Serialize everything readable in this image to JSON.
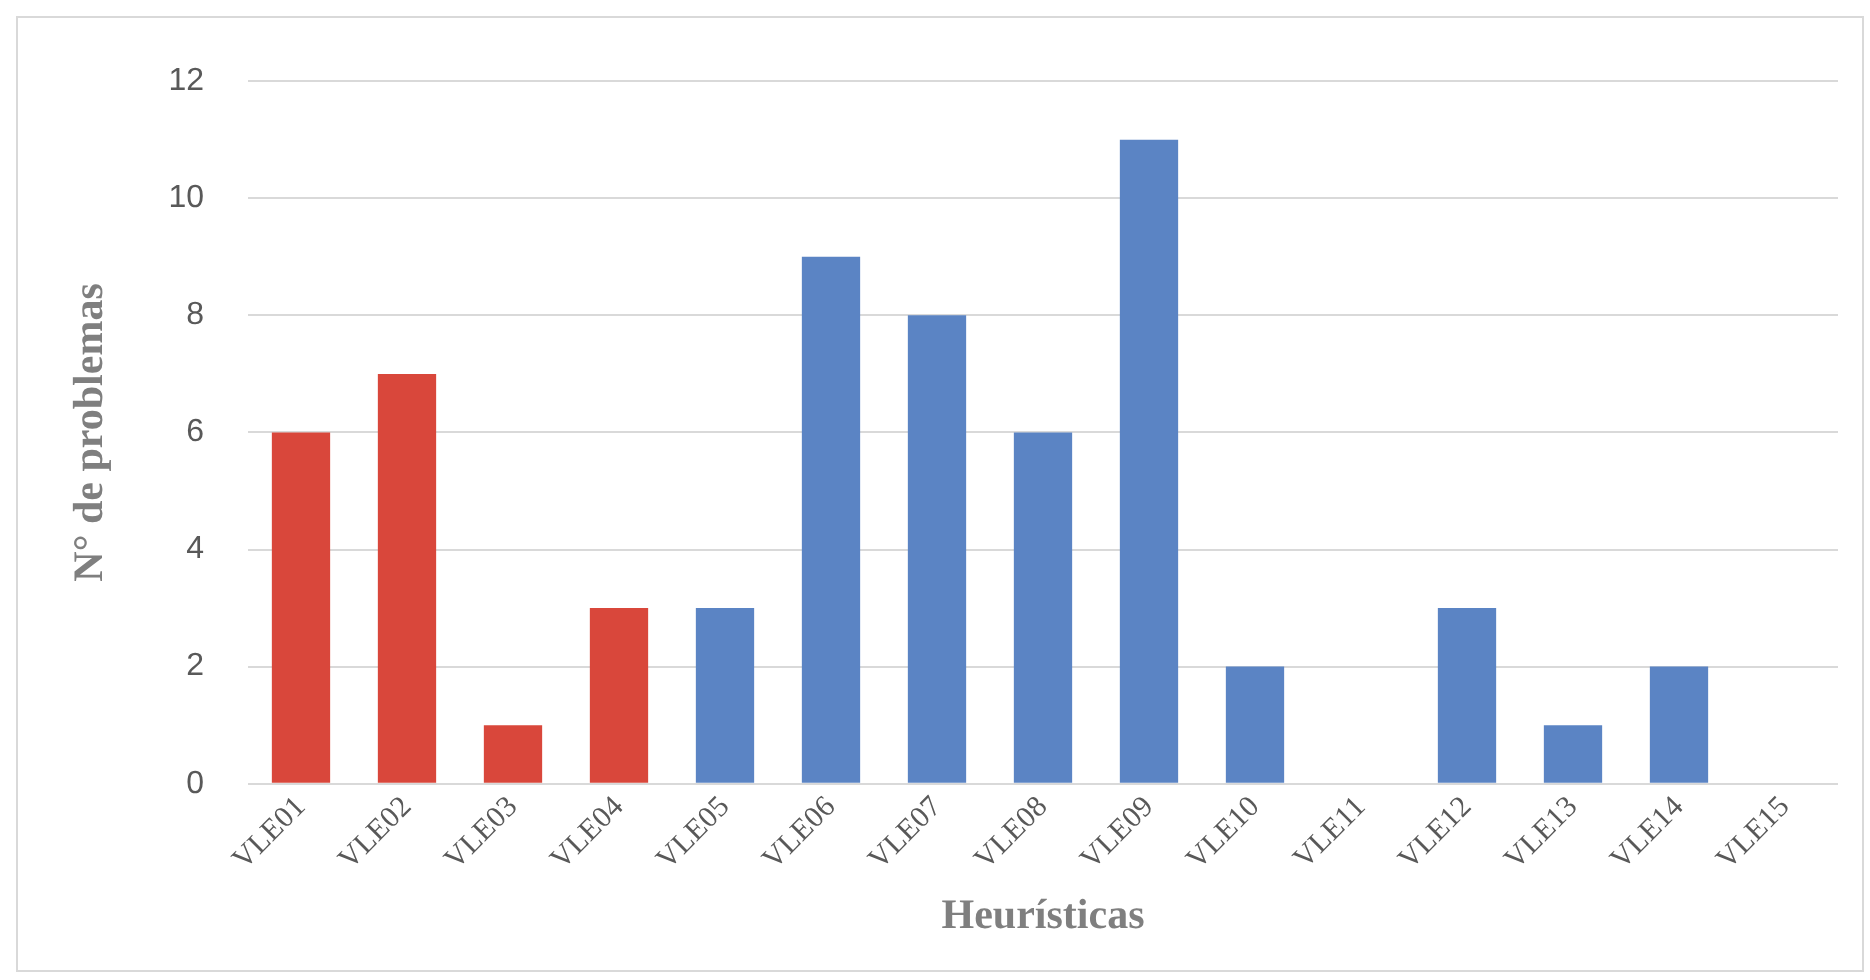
{
  "chart_data": {
    "type": "bar",
    "xlabel": "Heurísticas",
    "ylabel": "N° de problemas",
    "categories": [
      "VLE01",
      "VLE02",
      "VLE03",
      "VLE04",
      "VLE05",
      "VLE06",
      "VLE07",
      "VLE08",
      "VLE09",
      "VLE10",
      "VLE11",
      "VLE12",
      "VLE13",
      "VLE14",
      "VLE15"
    ],
    "values": [
      6,
      7,
      1,
      3,
      3,
      9,
      8,
      6,
      11,
      2,
      0,
      3,
      1,
      2,
      0
    ],
    "colors": [
      "#d9473b",
      "#d9473b",
      "#d9473b",
      "#d9473b",
      "#5b84c4",
      "#5b84c4",
      "#5b84c4",
      "#5b84c4",
      "#5b84c4",
      "#5b84c4",
      "#5b84c4",
      "#5b84c4",
      "#5b84c4",
      "#5b84c4",
      "#5b84c4"
    ],
    "ylim": [
      0,
      12
    ],
    "yticks": [
      0,
      2,
      4,
      6,
      8,
      10,
      12
    ],
    "grid": "y",
    "legend": false
  }
}
